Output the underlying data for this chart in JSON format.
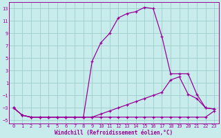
{
  "xlabel": "Windchill (Refroidissement éolien,°C)",
  "bg_color": "#c8ecec",
  "grid_color": "#9ecece",
  "line_color": "#990099",
  "xlim": [
    -0.5,
    23.5
  ],
  "ylim": [
    -5.5,
    14.0
  ],
  "xticks": [
    0,
    1,
    2,
    3,
    4,
    5,
    6,
    7,
    8,
    9,
    10,
    11,
    12,
    13,
    14,
    15,
    16,
    17,
    18,
    19,
    20,
    21,
    22,
    23
  ],
  "yticks": [
    -5,
    -3,
    -1,
    1,
    3,
    5,
    7,
    9,
    11,
    13
  ],
  "line1_x": [
    0,
    1,
    2,
    3,
    4,
    5,
    6,
    7,
    8,
    9,
    10,
    11,
    12,
    13,
    14,
    15,
    16,
    17,
    18,
    19,
    20,
    21,
    22,
    23
  ],
  "line1_y": [
    -3,
    -4.2,
    -4.5,
    -4.5,
    -4.5,
    -4.5,
    -4.5,
    -4.5,
    -4.5,
    -4.5,
    -4.5,
    -4.5,
    -4.5,
    -4.5,
    -4.5,
    -4.5,
    -4.5,
    -4.5,
    -4.5,
    -4.5,
    -4.5,
    -4.5,
    -4.5,
    -3.5
  ],
  "line2_x": [
    0,
    1,
    2,
    3,
    4,
    5,
    6,
    7,
    8,
    9,
    10,
    11,
    12,
    13,
    14,
    15,
    16,
    17,
    18,
    19,
    20,
    21,
    22,
    23
  ],
  "line2_y": [
    -3,
    -4.2,
    -4.5,
    -4.5,
    -4.5,
    -4.5,
    -4.5,
    -4.5,
    -4.5,
    -4.5,
    -4,
    -3.5,
    -3,
    -2.5,
    -2,
    -1.5,
    -1,
    -0.5,
    1.5,
    2,
    -0.8,
    -1.5,
    -3,
    -3.2
  ],
  "line3_x": [
    0,
    1,
    2,
    3,
    4,
    5,
    6,
    7,
    8,
    9,
    10,
    11,
    12,
    13,
    14,
    15,
    16,
    17,
    18,
    19,
    20,
    21,
    22,
    23
  ],
  "line3_y": [
    -3,
    -4.2,
    -4.5,
    -4.5,
    -4.5,
    -4.5,
    -4.5,
    -4.5,
    -4.5,
    4.5,
    7.5,
    9,
    11.5,
    12.2,
    12.5,
    13.2,
    13.0,
    8.5,
    2.5,
    2.5,
    2.5,
    -0.8,
    -3,
    -3.2
  ]
}
